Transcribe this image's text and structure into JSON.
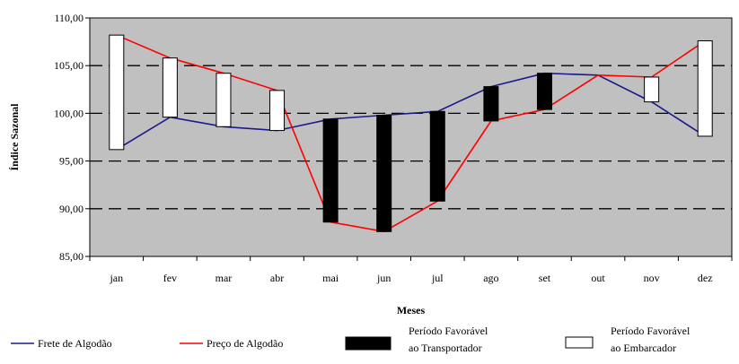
{
  "chart_data": {
    "type": "line",
    "title": "",
    "xlabel": "Meses",
    "ylabel": "Índice Sazonal",
    "categories": [
      "jan",
      "fev",
      "mar",
      "abr",
      "mai",
      "jun",
      "jul",
      "ago",
      "set",
      "out",
      "nov",
      "dez"
    ],
    "ylim": [
      85.0,
      110.0
    ],
    "y_ticks": [
      "85,00",
      "90,00",
      "95,00",
      "100,00",
      "105,00",
      "110,00"
    ],
    "grid": "horizontal-dashed",
    "series": [
      {
        "name": "Frete de Algodão",
        "color": "#1a1a8c",
        "values": [
          96.2,
          99.6,
          98.6,
          98.2,
          99.4,
          99.8,
          100.2,
          102.8,
          104.2,
          104.0,
          101.2,
          97.6
        ]
      },
      {
        "name": "Preço de Algodão",
        "color": "#ff0000",
        "values": [
          108.2,
          105.8,
          104.2,
          102.4,
          88.6,
          87.6,
          90.8,
          99.2,
          100.4,
          104.0,
          103.8,
          107.6
        ]
      }
    ],
    "bars": [
      {
        "category": "jan",
        "low": 96.2,
        "high": 108.2,
        "fill": "white"
      },
      {
        "category": "fev",
        "low": 99.6,
        "high": 105.8,
        "fill": "white"
      },
      {
        "category": "mar",
        "low": 98.6,
        "high": 104.2,
        "fill": "white"
      },
      {
        "category": "abr",
        "low": 98.2,
        "high": 102.4,
        "fill": "white"
      },
      {
        "category": "mai",
        "low": 88.6,
        "high": 99.4,
        "fill": "black"
      },
      {
        "category": "jun",
        "low": 87.6,
        "high": 99.8,
        "fill": "black"
      },
      {
        "category": "jul",
        "low": 90.8,
        "high": 100.2,
        "fill": "black"
      },
      {
        "category": "ago",
        "low": 99.2,
        "high": 102.8,
        "fill": "black"
      },
      {
        "category": "set",
        "low": 100.4,
        "high": 104.2,
        "fill": "black"
      },
      {
        "category": "nov",
        "low": 101.2,
        "high": 103.8,
        "fill": "white"
      },
      {
        "category": "dez",
        "low": 97.6,
        "high": 107.6,
        "fill": "white"
      }
    ],
    "legend": {
      "placement": "bottom",
      "entries": [
        {
          "kind": "line",
          "color": "#1a1a8c",
          "label": "Frete de Algodão"
        },
        {
          "kind": "line",
          "color": "#ff0000",
          "label": "Preço de Algodão"
        },
        {
          "kind": "box",
          "fill": "black",
          "label_line1": "Período Favorável",
          "label_line2": "ao Transportador"
        },
        {
          "kind": "box",
          "fill": "white",
          "label_line1": "Período Favorável",
          "label_line2": "ao Embarcador"
        }
      ]
    },
    "plot_background": "#c0c0c0"
  }
}
